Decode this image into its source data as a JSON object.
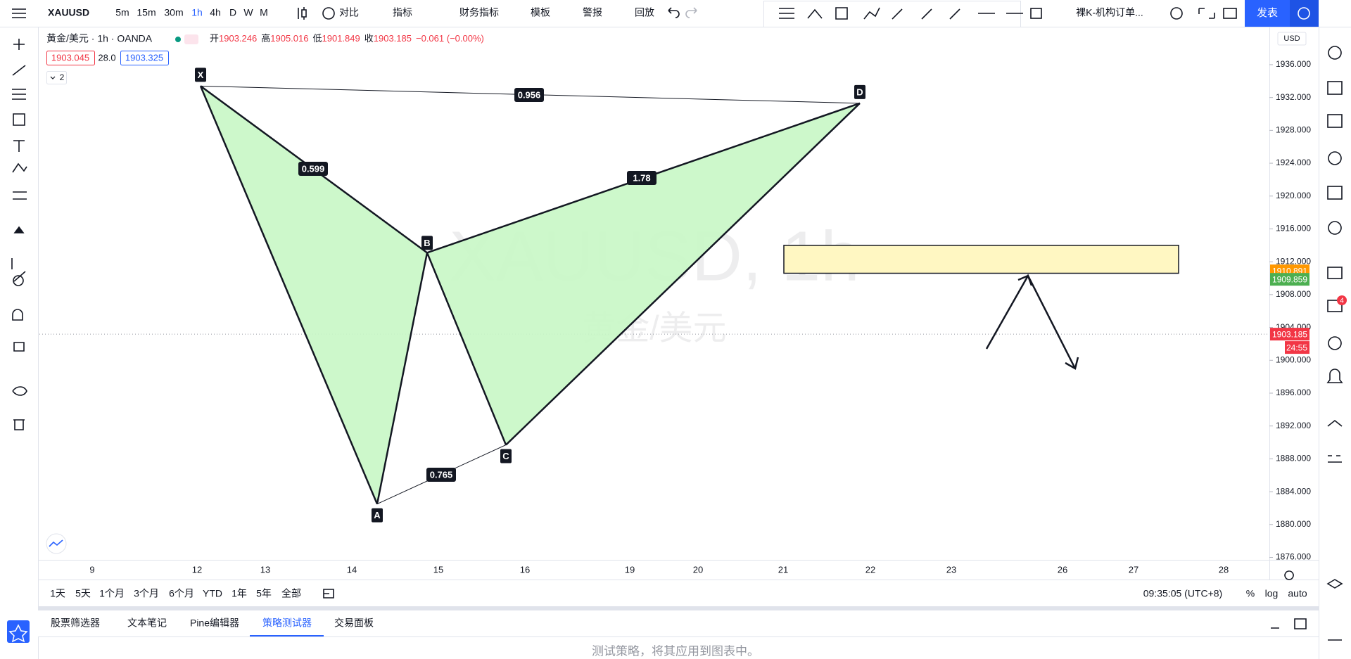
{
  "toolbar": {
    "symbol": "XAUUSD",
    "intervals": [
      "5m",
      "15m",
      "30m",
      "1h",
      "4h",
      "D",
      "W",
      "M"
    ],
    "buttons": [
      "对比",
      "指标",
      "财务指标",
      "模板",
      "警报",
      "回放"
    ],
    "template": "裸K-机构订单...",
    "publish": "发表"
  },
  "legend": {
    "title": "黄金/美元 · 1h · OANDA",
    "ohlc": [
      {
        "label": "开",
        "value": 1903.246
      },
      {
        "label": "高",
        "value": 1905.016
      },
      {
        "label": "低",
        "value": 1901.849
      },
      {
        "label": "收",
        "value": 1903.185
      }
    ],
    "change": "−0.061 (−0.00%)",
    "bid": 1903.045,
    "spread": "28.0",
    "ask": 1903.325,
    "collapse": "2"
  },
  "chart_data": {
    "type": "xabcd",
    "watermark": "XAUUSD, 1h",
    "watermark_sub": "黄金/美元",
    "currency": "USD",
    "points": [
      {
        "label": "X",
        "value": 1933.4
      },
      {
        "label": "A",
        "value": 1882.5
      },
      {
        "label": "B",
        "value": 1913.1
      },
      {
        "label": "C",
        "value": 1889.7
      },
      {
        "label": "D",
        "value": 1931.3
      }
    ],
    "ratios": [
      0.956,
      0.599,
      1.78,
      0.765
    ],
    "pattern_color": "#c8f7c5",
    "zone": [
      1910.6,
      1914.0
    ],
    "zone_color": "#fff7c2",
    "last_price": 1903.185,
    "countdown": "24:55",
    "ma_prices": [
      1910.891,
      1909.859
    ],
    "ma_colors": [
      "#ff9800",
      "#4caf50"
    ],
    "categories": [
      "9",
      "12",
      "13",
      "14",
      "15",
      "16",
      "19",
      "20",
      "21",
      "22",
      "23",
      "26",
      "27",
      "28"
    ],
    "ylim": [
      1875.7,
      1940.45
    ],
    "yticks": [
      {
        "value": 1876,
        "label": "1876.000"
      },
      {
        "value": 1880,
        "label": "1880.000"
      },
      {
        "value": 1884,
        "label": "1884.000"
      },
      {
        "value": 1888,
        "label": "1888.000"
      },
      {
        "value": 1892,
        "label": "1892.000"
      },
      {
        "value": 1896,
        "label": "1896.000"
      },
      {
        "value": 1900,
        "label": "1900.000"
      },
      {
        "value": 1904,
        "label": "1904.000"
      },
      {
        "value": 1908,
        "label": "1908.000"
      },
      {
        "value": 1912,
        "label": "1912.000"
      },
      {
        "value": 1916,
        "label": "1916.000"
      },
      {
        "value": 1920,
        "label": "1920.000"
      },
      {
        "value": 1924,
        "label": "1924.000"
      },
      {
        "value": 1928,
        "label": "1928.000"
      },
      {
        "value": 1932,
        "label": "1932.000"
      },
      {
        "value": 1936,
        "label": "1936.000"
      }
    ]
  },
  "bottom_bar": {
    "ranges": [
      "1天",
      "5天",
      "1个月",
      "3个月",
      "6个月",
      "YTD",
      "1年",
      "5年",
      "全部"
    ],
    "clock": "09:35:05 (UTC+8)",
    "options": [
      "%",
      "log",
      "auto"
    ]
  },
  "panel": {
    "tabs": [
      "股票筛选器",
      "文本笔记",
      "Pine编辑器",
      "策略测试器",
      "交易面板"
    ],
    "message": "测试策略，将其应用到图表中。"
  }
}
